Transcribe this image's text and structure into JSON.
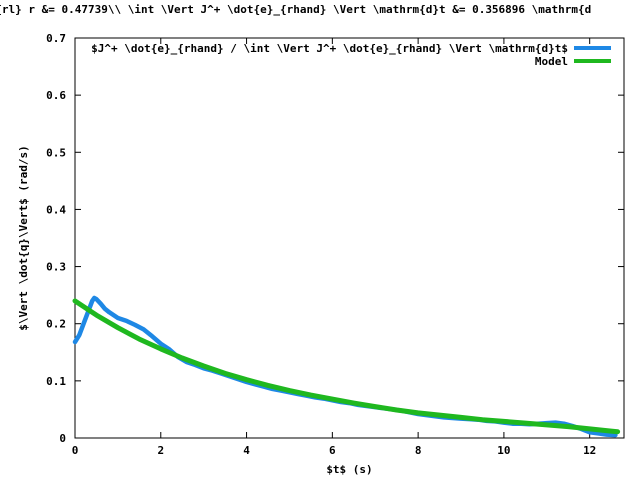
{
  "chart_data": {
    "type": "line",
    "title": "y}{rl} r &= 0.47739\\\\ \\int \\Vert J^+ \\dot{e}_{rhand} \\Vert \\mathrm{d}t &=  0.356896 \\mathrm{d",
    "xlabel": "$t$ (s)",
    "ylabel": "$\\Vert \\dot{q}\\Vert$ (rad/s)",
    "xlim": [
      0,
      12.8
    ],
    "ylim": [
      0,
      0.7
    ],
    "xticks": [
      0,
      2,
      4,
      6,
      8,
      10,
      12
    ],
    "yticks": [
      0,
      0.1,
      0.2,
      0.3,
      0.4,
      0.5,
      0.6,
      0.7
    ],
    "xtick_labels": [
      "0",
      "2",
      "4",
      "6",
      "8",
      "10",
      "12"
    ],
    "ytick_labels": [
      "0",
      "0.1",
      "0.2",
      "0.3",
      "0.4",
      "0.5",
      "0.6",
      "0.7"
    ],
    "grid": false,
    "legend": "top-right",
    "series": [
      {
        "name": "$J^+ \\dot{e}_{rhand} / \\int \\Vert J^+ \\dot{e}_{rhand} \\Vert \\mathrm{d}t$",
        "color": "#1e88e5",
        "x": [
          0,
          0.1,
          0.2,
          0.3,
          0.4,
          0.45,
          0.5,
          0.6,
          0.7,
          0.8,
          1.0,
          1.2,
          1.4,
          1.6,
          1.8,
          2.0,
          2.2,
          2.4,
          2.6,
          2.8,
          3.0,
          3.2,
          3.4,
          3.6,
          3.8,
          4.0,
          4.2,
          4.4,
          4.6,
          4.8,
          5.0,
          5.2,
          5.4,
          5.6,
          5.8,
          6.0,
          6.2,
          6.4,
          6.6,
          6.8,
          7.0,
          7.2,
          7.4,
          7.6,
          7.8,
          8.0,
          8.2,
          8.4,
          8.6,
          8.8,
          9.0,
          9.2,
          9.4,
          9.6,
          9.8,
          10.0,
          10.2,
          10.4,
          10.6,
          10.8,
          11.0,
          11.2,
          11.4,
          11.6,
          11.8,
          12.0,
          12.2,
          12.4,
          12.6
        ],
        "values": [
          0.168,
          0.18,
          0.2,
          0.22,
          0.24,
          0.245,
          0.243,
          0.235,
          0.226,
          0.22,
          0.21,
          0.205,
          0.198,
          0.19,
          0.178,
          0.165,
          0.155,
          0.142,
          0.133,
          0.128,
          0.122,
          0.118,
          0.113,
          0.108,
          0.103,
          0.098,
          0.094,
          0.09,
          0.086,
          0.083,
          0.08,
          0.077,
          0.074,
          0.071,
          0.069,
          0.066,
          0.063,
          0.061,
          0.058,
          0.056,
          0.054,
          0.052,
          0.05,
          0.048,
          0.045,
          0.042,
          0.04,
          0.038,
          0.036,
          0.035,
          0.034,
          0.033,
          0.032,
          0.03,
          0.029,
          0.027,
          0.025,
          0.025,
          0.024,
          0.025,
          0.026,
          0.027,
          0.025,
          0.021,
          0.016,
          0.01,
          0.008,
          0.006,
          0.005
        ]
      },
      {
        "name": "Model",
        "color": "#1fb81f",
        "x": [
          0,
          0.5,
          1.0,
          1.5,
          2.0,
          2.5,
          3.0,
          3.5,
          4.0,
          4.5,
          5.0,
          5.5,
          6.0,
          6.5,
          7.0,
          7.5,
          8.0,
          8.5,
          9.0,
          9.5,
          10.0,
          10.5,
          11.0,
          11.5,
          12.0,
          12.5,
          12.65
        ],
        "values": [
          0.24,
          0.215,
          0.193,
          0.173,
          0.156,
          0.14,
          0.126,
          0.113,
          0.102,
          0.092,
          0.083,
          0.075,
          0.068,
          0.061,
          0.055,
          0.049,
          0.044,
          0.04,
          0.036,
          0.032,
          0.029,
          0.026,
          0.023,
          0.02,
          0.016,
          0.012,
          0.011
        ]
      }
    ]
  }
}
